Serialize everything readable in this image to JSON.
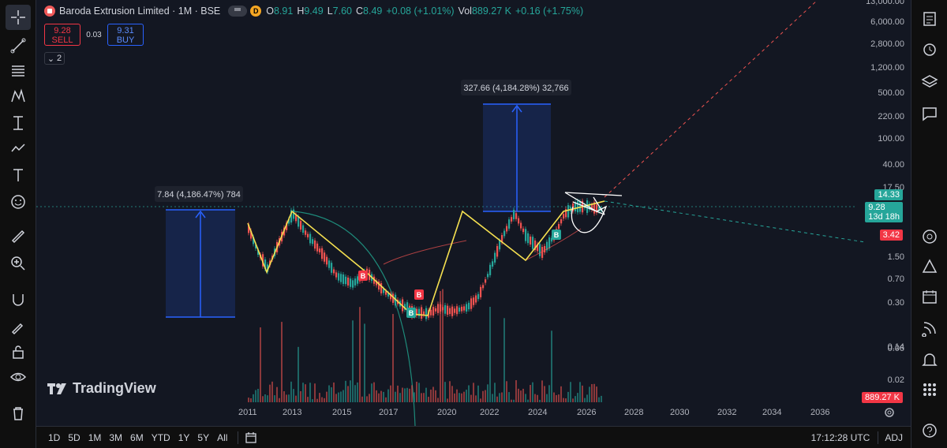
{
  "header": {
    "title": "Baroda Extrusion Limited · 1M · BSE",
    "d_badge": "D",
    "open_label": "O",
    "open": "8.91",
    "high_label": "H",
    "high": "9.49",
    "low_label": "L",
    "low": "7.60",
    "close_label": "C",
    "close": "8.49",
    "change": "+0.08 (+1.01%)",
    "vol_label": "Vol",
    "volume": "889.27 K",
    "vol_change": "+0.16 (+1.75%)"
  },
  "trade": {
    "sell_price": "9.28",
    "sell_label": "SELL",
    "spread": "0.03",
    "buy_price": "9.31",
    "buy_label": "BUY",
    "indicators_count": "2"
  },
  "logo_text": "TradingView",
  "annotations": {
    "measure_left": "7.84 (4,186.47%) 784",
    "measure_right": "327.66 (4,184.28%) 32,766"
  },
  "price_axis": {
    "ticks": [
      "13,000.00",
      "6,000.00",
      "2,800.00",
      "1,200.00",
      "500.00",
      "220.00",
      "100.00",
      "40.00",
      "17.50",
      "1.50",
      "0.70",
      "0.30",
      "0.14",
      "0.06",
      "0.02"
    ],
    "tag_high": "14.33",
    "tag_last_price": "9.28",
    "tag_countdown": "13d 18h",
    "tag_low": "3.42",
    "tag_volume": "889.27 K"
  },
  "time_axis": [
    "2011",
    "2013",
    "2015",
    "2017",
    "2020",
    "2022",
    "2024",
    "2026",
    "2028",
    "2030",
    "2032",
    "2034",
    "2036"
  ],
  "bottom_bar": {
    "timeframes": [
      "1D",
      "5D",
      "1M",
      "3M",
      "6M",
      "YTD",
      "1Y",
      "5Y",
      "All"
    ],
    "clock": "17:12:28 UTC",
    "adj": "ADJ"
  },
  "chart_data": {
    "type": "candlestick",
    "scale": "log",
    "markers": [
      "B",
      "B",
      "B",
      "B"
    ],
    "colors": {
      "up": "#26a69a",
      "down": "#ef5350",
      "pattern": "#f5e050",
      "measure": "#2962ff",
      "arc": "#1e8a7a",
      "wma": "#ef5350"
    }
  },
  "colors": {
    "background": "#131722",
    "up": "#26a69a",
    "down": "#f23645",
    "accent": "#2962ff"
  }
}
